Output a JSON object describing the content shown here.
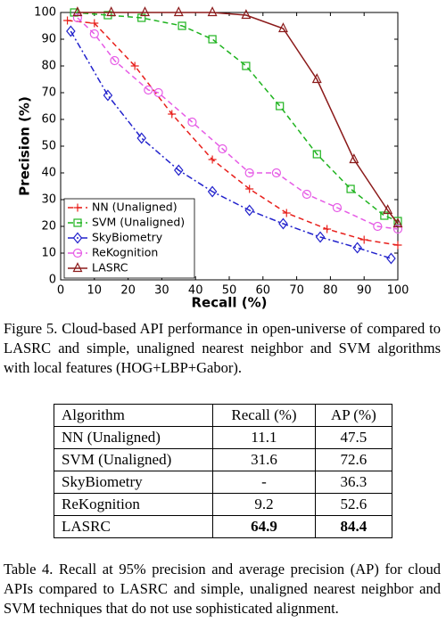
{
  "chart_data": {
    "type": "line",
    "xlabel": "Recall (%)",
    "ylabel": "Precision (%)",
    "xlim": [
      0,
      100
    ],
    "xticks": [
      0,
      10,
      20,
      30,
      40,
      50,
      60,
      70,
      80,
      90,
      100
    ],
    "ylim": [
      0,
      100
    ],
    "yticks": [
      0,
      10,
      20,
      30,
      40,
      50,
      60,
      70,
      80,
      90,
      100
    ],
    "grid": false,
    "legend": "lower left",
    "series": [
      {
        "name": "NN (Unaligned)",
        "color": "#e8201c",
        "marker": "plus",
        "linestyle": "dashed",
        "x": [
          2,
          10,
          22,
          33,
          45,
          56,
          67,
          79,
          90,
          100
        ],
        "values": [
          97,
          96,
          80,
          62,
          45,
          34,
          25,
          19,
          15,
          13
        ]
      },
      {
        "name": "SVM (Unaligned)",
        "color": "#1fb31f",
        "marker": "square",
        "linestyle": "dashed",
        "x": [
          4,
          14,
          24,
          36,
          45,
          55,
          65,
          76,
          86,
          96,
          100
        ],
        "values": [
          100,
          99,
          98,
          95,
          90,
          80,
          65,
          47,
          34,
          24,
          22
        ]
      },
      {
        "name": "SkyBiometry",
        "color": "#2222cc",
        "marker": "diamond",
        "linestyle": "dashdot",
        "x": [
          3,
          14,
          24,
          35,
          45,
          56,
          66,
          77,
          88,
          98
        ],
        "values": [
          93,
          69,
          53,
          41,
          33,
          26,
          21,
          16,
          12,
          8
        ]
      },
      {
        "name": "ReKognition",
        "color": "#e65ce6",
        "marker": "circle",
        "linestyle": "dashed",
        "x": [
          5,
          10,
          16,
          26,
          29,
          39,
          48,
          56,
          64,
          73,
          82,
          94,
          100
        ],
        "values": [
          98,
          92,
          82,
          71,
          70,
          59,
          49,
          40,
          40,
          32,
          27,
          20,
          19
        ]
      },
      {
        "name": "LASRC",
        "color": "#8b1a1a",
        "marker": "triangle",
        "linestyle": "solid",
        "x": [
          5,
          15,
          25,
          35,
          45,
          55,
          66,
          76,
          87,
          97,
          100
        ],
        "values": [
          100,
          100,
          100,
          100,
          100,
          99,
          94,
          75,
          45,
          26,
          21
        ]
      }
    ]
  },
  "figure_caption": "Figure 5. Cloud-based API performance in open-universe of compared to LASRC and simple, unaligned nearest neighbor and SVM algorithms with local features (HOG+LBP+Gabor).",
  "table": {
    "header": [
      "Algorithm",
      "Recall (%)",
      "AP (%)"
    ],
    "rows": [
      [
        "NN (Unaligned)",
        "11.1",
        "47.5"
      ],
      [
        "SVM (Unaligned)",
        "31.6",
        "72.6"
      ],
      [
        "SkyBiometry",
        "-",
        "36.3"
      ],
      [
        "ReKognition",
        "9.2",
        "52.6"
      ],
      [
        "LASRC",
        "64.9",
        "84.4"
      ]
    ]
  },
  "table_caption": "Table 4. Recall at 95% precision and average precision (AP) for cloud APIs compared to LASRC and simple, unaligned nearest neighbor and SVM techniques that do not use sophisticated alignment."
}
